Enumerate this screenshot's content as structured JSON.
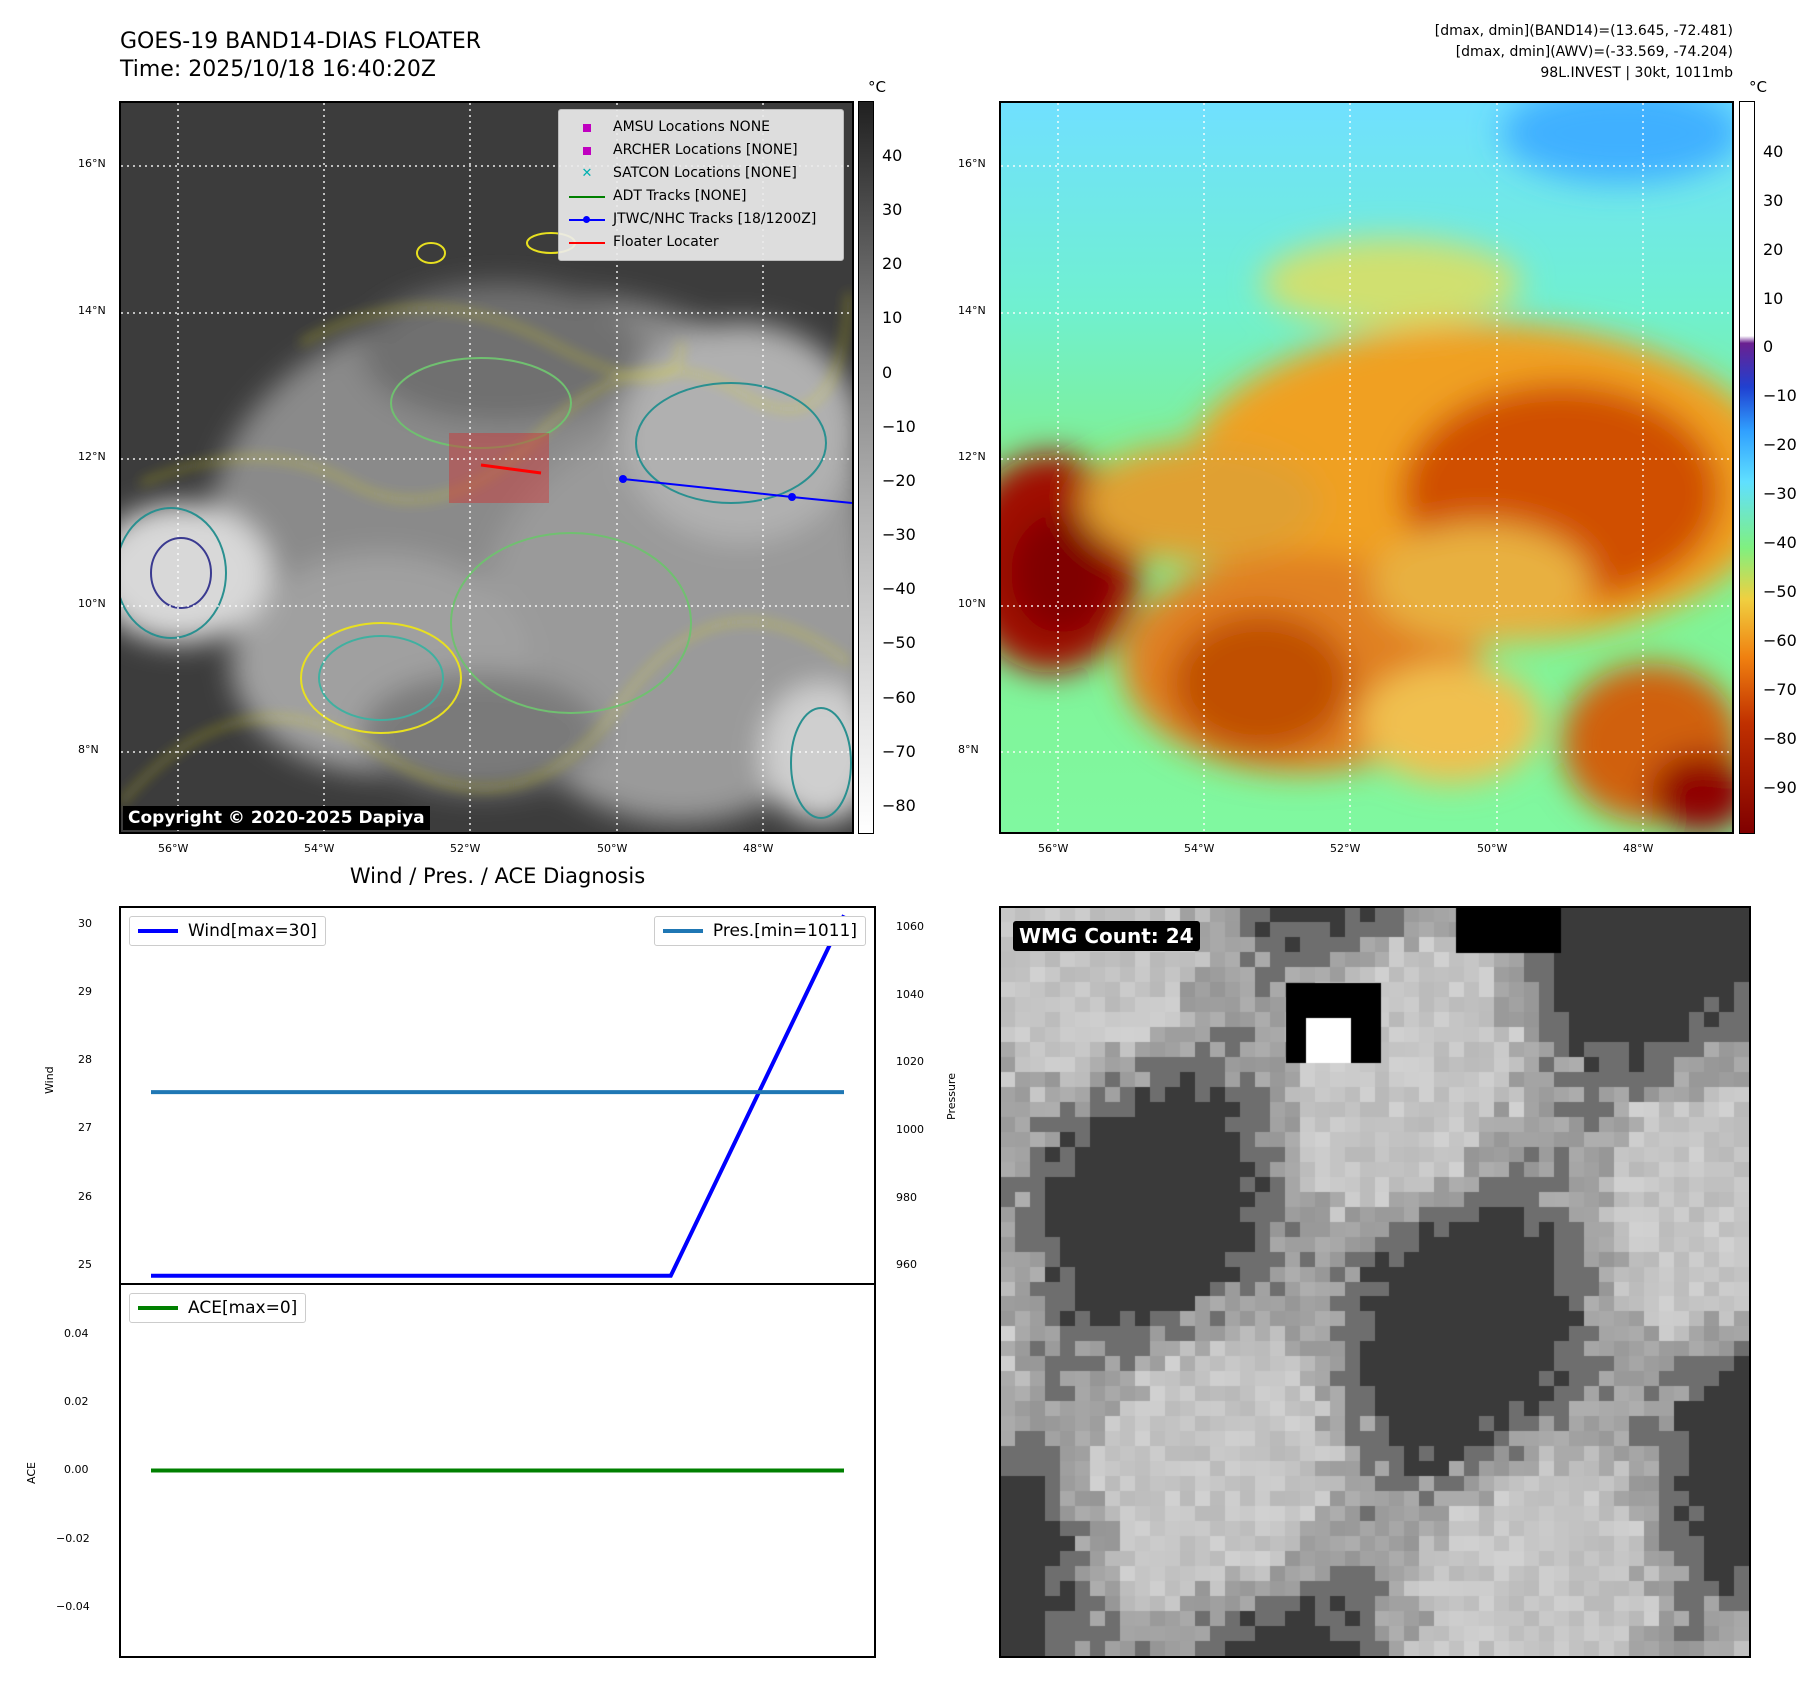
{
  "header": {
    "title": "GOES-19 BAND14-DIAS FLOATER",
    "time": "Time: 2025/10/18 16:40:20Z",
    "stats_line1": "[dmax, dmin](BAND14)=(13.645, -72.481)",
    "stats_line2": "[dmax, dmin](AWV)=(-33.569, -74.204)",
    "stats_line3": "98L.INVEST | 30kt, 1011mb"
  },
  "map": {
    "lat_labels": [
      "16°N",
      "14°N",
      "12°N",
      "10°N",
      "8°N"
    ],
    "lon_labels": [
      "56°W",
      "54°W",
      "52°W",
      "50°W",
      "48°W"
    ],
    "copyright": "Copyright © 2020-2025 Dapiya",
    "legend": [
      {
        "label": "AMSU Locations NONE",
        "symbol": "square",
        "color": "#c000c0"
      },
      {
        "label": "ARCHER Locations [NONE]",
        "symbol": "square",
        "color": "#c000c0"
      },
      {
        "label": "SATCON Locations [NONE]",
        "symbol": "x",
        "color": "#00b0b0"
      },
      {
        "label": "ADT Tracks [NONE]",
        "symbol": "line",
        "color": "#008000"
      },
      {
        "label": "JTWC/NHC Tracks [18/1200Z]",
        "symbol": "line-dot",
        "color": "#0000ff"
      },
      {
        "label": "Floater Locater",
        "symbol": "line",
        "color": "#ff0000"
      }
    ]
  },
  "colorbar_left": {
    "unit": "°C",
    "ticks": [
      "40",
      "30",
      "20",
      "10",
      "0",
      "−10",
      "−20",
      "−30",
      "−40",
      "−50",
      "−60",
      "−70",
      "−80"
    ]
  },
  "colorbar_right": {
    "unit": "°C",
    "ticks": [
      "40",
      "30",
      "20",
      "10",
      "0",
      "−10",
      "−20",
      "−30",
      "−40",
      "−50",
      "−60",
      "−70",
      "−80",
      "−90"
    ]
  },
  "diagnosis": {
    "title": "Wind / Pres. / ACE Diagnosis",
    "wind_ylabel": "Wind",
    "pres_ylabel": "Pressure",
    "ace_ylabel": "ACE",
    "wind_legend": "Wind[max=30]",
    "pres_legend": "Pres.[min=1011]",
    "ace_legend": "ACE[max=0]",
    "wind_ticks": [
      "30",
      "29",
      "28",
      "27",
      "26",
      "25"
    ],
    "pres_ticks": [
      "1060",
      "1040",
      "1020",
      "1000",
      "980",
      "960"
    ],
    "ace_ticks": [
      "0.04",
      "0.02",
      "0.00",
      "−0.02",
      "−0.04"
    ]
  },
  "wmg": {
    "label": "WMG Count: 24"
  },
  "colors": {
    "wind": "#0000ff",
    "pressure": "#1f77b4",
    "ace": "#008000",
    "track": "#0000ff",
    "floater": "#ff0000"
  },
  "chart_data": [
    {
      "type": "line",
      "title": "Wind / Pres. / ACE Diagnosis",
      "x": [
        0,
        1,
        2,
        3,
        4
      ],
      "series": [
        {
          "name": "Wind[max=30]",
          "values": [
            25,
            25,
            25,
            25,
            30
          ],
          "axis": "left",
          "color": "#0000ff"
        },
        {
          "name": "Pres.[min=1011]",
          "values": [
            1011,
            1011,
            1011,
            1011,
            1011
          ],
          "axis": "right",
          "color": "#1f77b4"
        }
      ],
      "ylabel": "Wind",
      "ylim": [
        24.9,
        30.1
      ],
      "y2label": "Pressure",
      "y2lim": [
        955,
        1065
      ]
    },
    {
      "type": "line",
      "x": [
        0,
        1,
        2,
        3,
        4
      ],
      "series": [
        {
          "name": "ACE[max=0]",
          "values": [
            0,
            0,
            0,
            0,
            0
          ],
          "color": "#008000"
        }
      ],
      "ylabel": "ACE",
      "ylim": [
        -0.055,
        0.055
      ]
    }
  ]
}
